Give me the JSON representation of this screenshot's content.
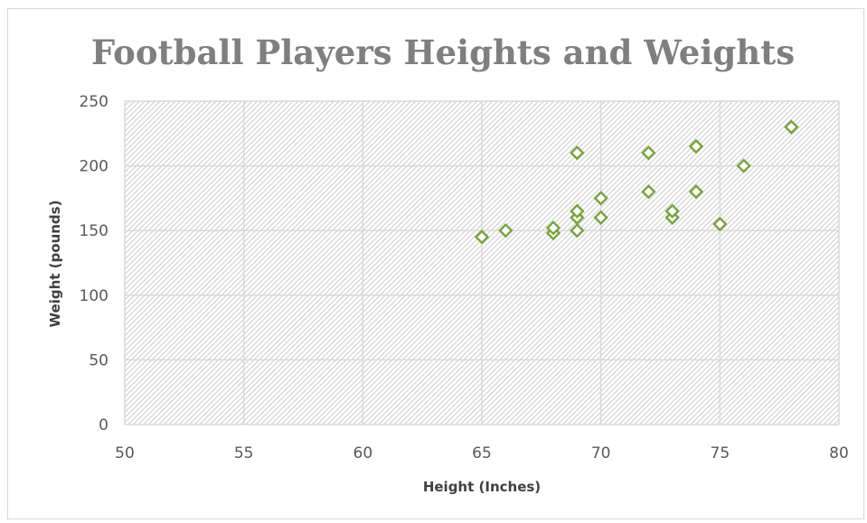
{
  "chart_data": {
    "type": "scatter",
    "title": "Football Players Heights and Weights",
    "xlabel": "Height (Inches)",
    "ylabel": "Weight (pounds)",
    "xlim": [
      50,
      80
    ],
    "ylim": [
      0,
      250
    ],
    "x_ticks": [
      "50",
      "55",
      "60",
      "65",
      "70",
      "75",
      "80"
    ],
    "y_ticks": [
      "0",
      "50",
      "100",
      "150",
      "200",
      "250"
    ],
    "grid": true,
    "legend": "none",
    "marker": "diamond-open",
    "colors": {
      "marker": "#77a33c",
      "grid": "#d9d9d9",
      "plot_hatch": "#bfbfbf",
      "title": "#7f7f7f"
    },
    "series": [
      {
        "points": [
          {
            "x": 65,
            "y": 145
          },
          {
            "x": 66,
            "y": 150
          },
          {
            "x": 68,
            "y": 148
          },
          {
            "x": 68,
            "y": 152
          },
          {
            "x": 69,
            "y": 150
          },
          {
            "x": 69,
            "y": 160
          },
          {
            "x": 69,
            "y": 165
          },
          {
            "x": 69,
            "y": 210
          },
          {
            "x": 70,
            "y": 160
          },
          {
            "x": 70,
            "y": 175
          },
          {
            "x": 72,
            "y": 180
          },
          {
            "x": 72,
            "y": 210
          },
          {
            "x": 73,
            "y": 160
          },
          {
            "x": 73,
            "y": 165
          },
          {
            "x": 74,
            "y": 180
          },
          {
            "x": 74,
            "y": 215
          },
          {
            "x": 75,
            "y": 155
          },
          {
            "x": 76,
            "y": 200
          },
          {
            "x": 78,
            "y": 230
          }
        ]
      }
    ]
  }
}
